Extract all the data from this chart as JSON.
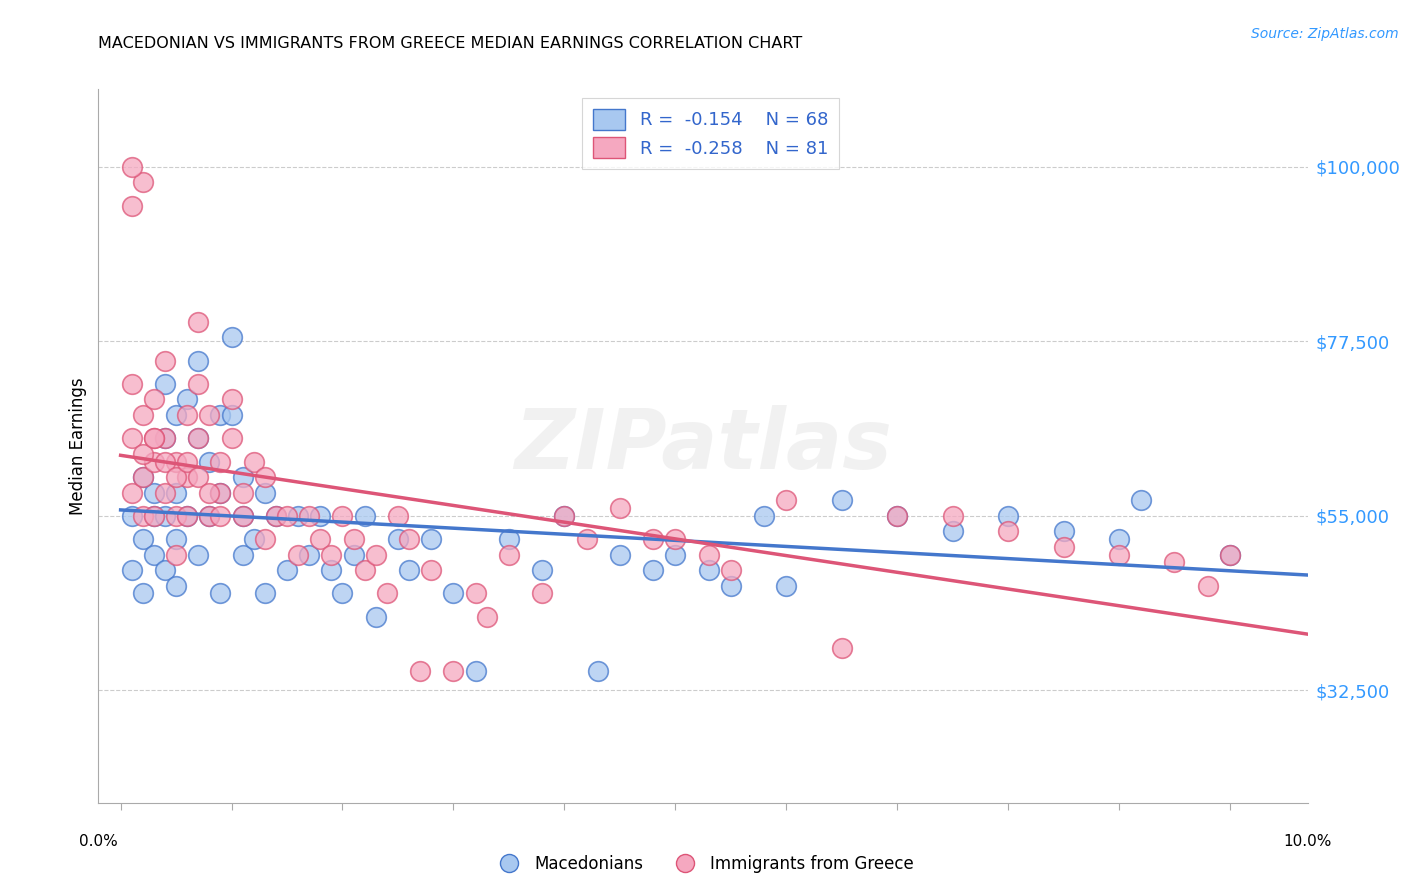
{
  "title": "MACEDONIAN VS IMMIGRANTS FROM GREECE MEDIAN EARNINGS CORRELATION CHART",
  "source": "Source: ZipAtlas.com",
  "ylabel": "Median Earnings",
  "ytick_labels": [
    "$32,500",
    "$55,000",
    "$77,500",
    "$100,000"
  ],
  "ytick_values": [
    32500,
    55000,
    77500,
    100000
  ],
  "ymin": 18000,
  "ymax": 110000,
  "xmin": -0.002,
  "xmax": 0.107,
  "blue_color": "#A8C8F0",
  "pink_color": "#F5A8C0",
  "blue_line_color": "#4477CC",
  "pink_line_color": "#DD5577",
  "watermark": "ZIPatlas",
  "blue_scatter_x": [
    0.001,
    0.001,
    0.002,
    0.002,
    0.003,
    0.003,
    0.003,
    0.004,
    0.004,
    0.004,
    0.005,
    0.005,
    0.005,
    0.005,
    0.006,
    0.006,
    0.007,
    0.007,
    0.007,
    0.008,
    0.008,
    0.009,
    0.009,
    0.009,
    0.01,
    0.01,
    0.011,
    0.011,
    0.011,
    0.012,
    0.013,
    0.013,
    0.014,
    0.015,
    0.016,
    0.017,
    0.018,
    0.019,
    0.02,
    0.021,
    0.022,
    0.023,
    0.025,
    0.026,
    0.028,
    0.03,
    0.032,
    0.035,
    0.038,
    0.04,
    0.043,
    0.045,
    0.048,
    0.05,
    0.053,
    0.055,
    0.058,
    0.06,
    0.065,
    0.07,
    0.075,
    0.08,
    0.085,
    0.09,
    0.092,
    0.1,
    0.002,
    0.004
  ],
  "blue_scatter_y": [
    55000,
    48000,
    52000,
    60000,
    58000,
    50000,
    55000,
    65000,
    72000,
    48000,
    68000,
    58000,
    52000,
    46000,
    70000,
    55000,
    75000,
    65000,
    50000,
    55000,
    62000,
    68000,
    58000,
    45000,
    78000,
    68000,
    55000,
    50000,
    60000,
    52000,
    58000,
    45000,
    55000,
    48000,
    55000,
    50000,
    55000,
    48000,
    45000,
    50000,
    55000,
    42000,
    52000,
    48000,
    52000,
    45000,
    35000,
    52000,
    48000,
    55000,
    35000,
    50000,
    48000,
    50000,
    48000,
    46000,
    55000,
    46000,
    57000,
    55000,
    53000,
    55000,
    53000,
    52000,
    57000,
    50000,
    45000,
    55000
  ],
  "pink_scatter_x": [
    0.001,
    0.001,
    0.001,
    0.002,
    0.002,
    0.002,
    0.003,
    0.003,
    0.003,
    0.004,
    0.004,
    0.004,
    0.005,
    0.005,
    0.005,
    0.006,
    0.006,
    0.006,
    0.007,
    0.007,
    0.007,
    0.008,
    0.008,
    0.009,
    0.009,
    0.01,
    0.01,
    0.011,
    0.011,
    0.012,
    0.013,
    0.013,
    0.014,
    0.015,
    0.016,
    0.017,
    0.018,
    0.019,
    0.02,
    0.021,
    0.022,
    0.023,
    0.024,
    0.025,
    0.026,
    0.027,
    0.028,
    0.03,
    0.032,
    0.033,
    0.035,
    0.038,
    0.04,
    0.042,
    0.045,
    0.048,
    0.05,
    0.053,
    0.055,
    0.06,
    0.065,
    0.07,
    0.075,
    0.08,
    0.085,
    0.09,
    0.095,
    0.098,
    0.1,
    0.001,
    0.002,
    0.003,
    0.001,
    0.002,
    0.003,
    0.004,
    0.005,
    0.006,
    0.007,
    0.008,
    0.009
  ],
  "pink_scatter_y": [
    58000,
    65000,
    72000,
    60000,
    55000,
    68000,
    55000,
    62000,
    70000,
    65000,
    58000,
    75000,
    62000,
    55000,
    50000,
    68000,
    60000,
    55000,
    72000,
    65000,
    80000,
    68000,
    55000,
    62000,
    58000,
    70000,
    65000,
    58000,
    55000,
    62000,
    52000,
    60000,
    55000,
    55000,
    50000,
    55000,
    52000,
    50000,
    55000,
    52000,
    48000,
    50000,
    45000,
    55000,
    52000,
    35000,
    48000,
    35000,
    45000,
    42000,
    50000,
    45000,
    55000,
    52000,
    56000,
    52000,
    52000,
    50000,
    48000,
    57000,
    38000,
    55000,
    55000,
    53000,
    51000,
    50000,
    49000,
    46000,
    50000,
    95000,
    98000,
    65000,
    100000,
    63000,
    65000,
    62000,
    60000,
    62000,
    60000,
    58000,
    55000
  ]
}
